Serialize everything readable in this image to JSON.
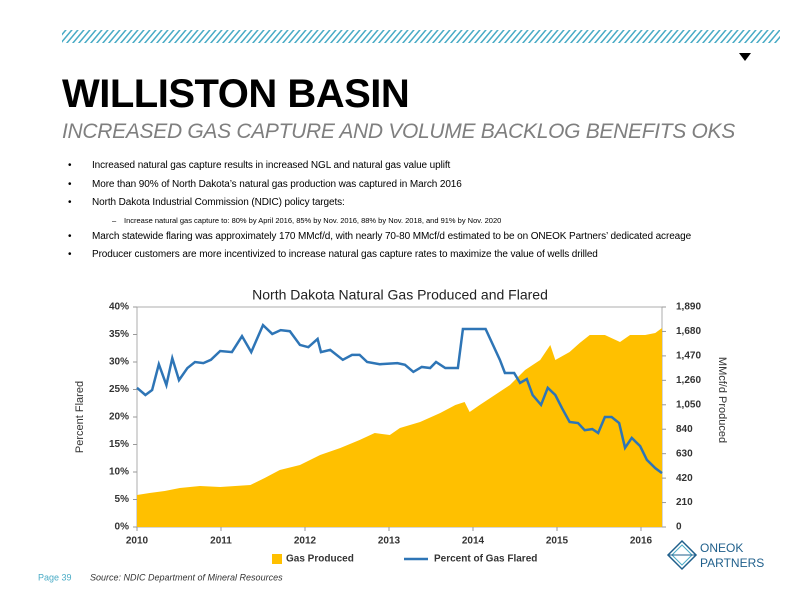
{
  "header": {
    "title": "WILLISTON BASIN",
    "subtitle": "INCREASED GAS CAPTURE AND VOLUME BACKLOG BENEFITS OKS"
  },
  "bullets": [
    {
      "text": "Increased natural gas capture results in increased NGL and natural gas value uplift"
    },
    {
      "text": "More than 90% of North Dakota’s natural gas production was captured in March 2016"
    },
    {
      "text": "North Dakota Industrial Commission (NDIC) policy targets:",
      "sub": [
        "Increase natural gas capture to: 80% by April 2016, 85% by Nov. 2016, 88% by Nov. 2018, and 91% by Nov. 2020"
      ]
    },
    {
      "text": "March statewide flaring was approximately 170 MMcf/d, with nearly 70-80 MMcf/d estimated to be on ONEOK Partners’ dedicated acreage"
    },
    {
      "text": "Producer customers are more incentivized to increase natural gas capture rates to maximize the value of wells drilled"
    }
  ],
  "chart_data": {
    "type": "area-line",
    "title": "North Dakota Natural Gas Produced and Flared",
    "ylabel": "Percent Flared",
    "y2label": "MMcf/d Produced",
    "xlim": [
      2010,
      2016.25
    ],
    "xticks": [
      2010,
      2011,
      2012,
      2013,
      2014,
      2015,
      2016
    ],
    "ylim": [
      0,
      40
    ],
    "yticks": [
      {
        "value": 0,
        "label": "0%"
      },
      {
        "value": 5,
        "label": "5%"
      },
      {
        "value": 10,
        "label": "10%"
      },
      {
        "value": 15,
        "label": "15%"
      },
      {
        "value": 20,
        "label": "20%"
      },
      {
        "value": 25,
        "label": "25%"
      },
      {
        "value": 30,
        "label": "30%"
      },
      {
        "value": 35,
        "label": "35%"
      },
      {
        "value": 40,
        "label": "40%"
      }
    ],
    "y2lim": [
      0,
      1890
    ],
    "y2ticks": [
      0,
      210,
      420,
      630,
      840,
      {
        "value": 1050,
        "label": "1,050"
      },
      {
        "value": 1260,
        "label": "1,260"
      },
      {
        "value": 1470,
        "label": "1,470"
      },
      {
        "value": 1680,
        "label": "1,680"
      },
      {
        "value": 1890,
        "label": "1,890"
      }
    ],
    "legend": "bottom",
    "series": [
      {
        "name": "Gas Produced",
        "kind": "area",
        "axis": "y2",
        "color": "#ffc000",
        "x": [
          2010.0,
          2010.15,
          2010.33,
          2010.51,
          2010.75,
          2010.99,
          2011.17,
          2011.35,
          2011.52,
          2011.7,
          2011.94,
          2012.18,
          2012.42,
          2012.65,
          2012.83,
          2013.01,
          2013.13,
          2013.37,
          2013.61,
          2013.79,
          2013.9,
          2013.96,
          2014.08,
          2014.26,
          2014.44,
          2014.62,
          2014.8,
          2014.92,
          2014.98,
          2015.15,
          2015.27,
          2015.39,
          2015.57,
          2015.75,
          2015.87,
          2016.05,
          2016.17,
          2016.25
        ],
        "values": [
          275,
          292,
          309,
          335,
          352,
          344,
          352,
          361,
          421,
          490,
          533,
          619,
          679,
          747,
          808,
          790,
          851,
          902,
          979,
          1048,
          1074,
          988,
          1048,
          1134,
          1220,
          1349,
          1435,
          1564,
          1435,
          1503,
          1581,
          1649,
          1649,
          1589,
          1649,
          1649,
          1667,
          1710
        ]
      },
      {
        "name": "Percent of Gas Flared",
        "kind": "line",
        "axis": "y",
        "color": "#2e75b6",
        "x": [
          2010.0,
          2010.1,
          2010.18,
          2010.26,
          2010.35,
          2010.42,
          2010.5,
          2010.6,
          2010.69,
          2010.79,
          2010.88,
          2010.99,
          2011.13,
          2011.25,
          2011.36,
          2011.5,
          2011.61,
          2011.71,
          2011.82,
          2011.94,
          2012.04,
          2012.15,
          2012.19,
          2012.3,
          2012.45,
          2012.56,
          2012.65,
          2012.74,
          2012.89,
          2013.1,
          2013.19,
          2013.29,
          2013.39,
          2013.49,
          2013.56,
          2013.67,
          2013.82,
          2013.88,
          2014.15,
          2014.32,
          2014.38,
          2014.49,
          2014.56,
          2014.64,
          2014.71,
          2014.81,
          2014.89,
          2014.98,
          2015.06,
          2015.15,
          2015.25,
          2015.33,
          2015.42,
          2015.49,
          2015.57,
          2015.65,
          2015.74,
          2015.81,
          2015.89,
          2015.99,
          2016.07,
          2016.17,
          2016.25
        ],
        "values": [
          25.3,
          24.0,
          24.9,
          29.6,
          25.8,
          30.7,
          26.7,
          28.9,
          30.0,
          29.8,
          30.4,
          32.0,
          31.8,
          34.7,
          31.8,
          36.7,
          35.1,
          35.8,
          35.6,
          33.1,
          32.7,
          34.2,
          31.8,
          32.2,
          30.4,
          31.3,
          31.3,
          30.0,
          29.6,
          29.8,
          29.5,
          28.2,
          29.1,
          28.9,
          30.0,
          28.9,
          28.9,
          36.0,
          36.0,
          30.4,
          28.0,
          28.0,
          26.2,
          26.9,
          24.0,
          22.2,
          25.3,
          24.0,
          21.6,
          19.1,
          18.9,
          17.6,
          17.8,
          17.1,
          20.0,
          20.0,
          18.9,
          14.4,
          16.2,
          14.7,
          12.2,
          10.7,
          9.8
        ]
      }
    ]
  },
  "footer": {
    "page": "Page 39",
    "source": "Source: NDIC Department of Mineral Resources",
    "logo_top": "ONEOK",
    "logo_bottom": "PARTNERS"
  }
}
